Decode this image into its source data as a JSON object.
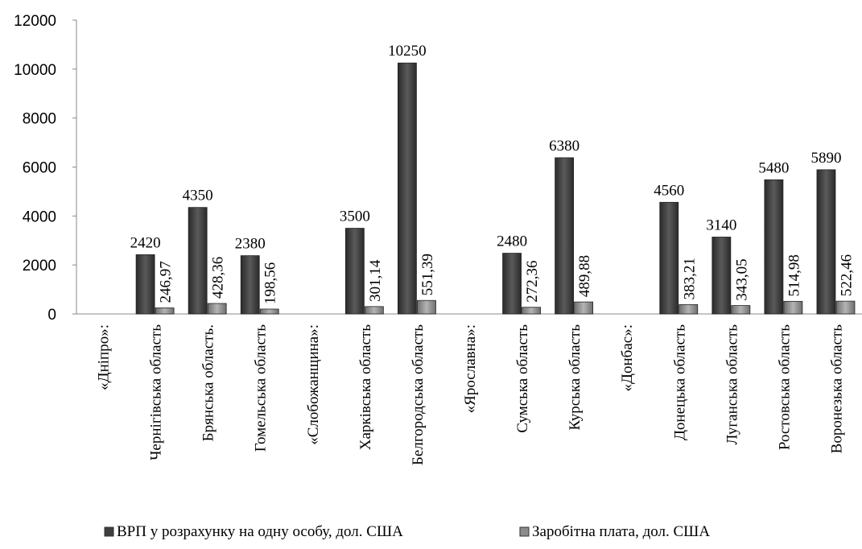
{
  "chart_data": {
    "type": "bar",
    "categories": [
      "«Дніпро»:",
      "Чернігівська область",
      "Брянська область.",
      "Гомельська область",
      "«Слобожанщина»:",
      "Харківська область",
      "Белгородська область",
      "«Ярославна»:",
      "Сумська область",
      "Курська область",
      "«Донбас»:",
      "Донецька область",
      "Луганська область",
      "Ростовська область",
      "Воронезька область"
    ],
    "series": [
      {
        "name": "ВРП у розрахунку на одну особу, дол. США",
        "values": [
          null,
          2420,
          4350,
          2380,
          null,
          3500,
          10250,
          null,
          2480,
          6380,
          null,
          4560,
          3140,
          5480,
          5890
        ],
        "labels": [
          "",
          "2420",
          "4350",
          "2380",
          "",
          "3500",
          "10250",
          "",
          "2480",
          "6380",
          "",
          "4560",
          "3140",
          "5480",
          "5890"
        ],
        "color": "#3f3f3f"
      },
      {
        "name": "Заробітна плата, дол. США",
        "values": [
          null,
          246.97,
          428.36,
          198.56,
          null,
          301.14,
          551.39,
          null,
          272.36,
          489.88,
          null,
          383.21,
          343.05,
          514.98,
          522.46
        ],
        "labels": [
          "",
          "246,97",
          "428,36",
          "198,56",
          "",
          "301,14",
          "551,39",
          "",
          "272,36",
          "489,88",
          "",
          "383,21",
          "343,05",
          "514,98",
          "522,46"
        ],
        "color": "#8c8c8c"
      }
    ],
    "y_ticks": [
      "0",
      "2000",
      "4000",
      "6000",
      "8000",
      "10000",
      "12000"
    ],
    "ylim": [
      0,
      12000
    ],
    "grid": false,
    "legend_position": "bottom"
  }
}
